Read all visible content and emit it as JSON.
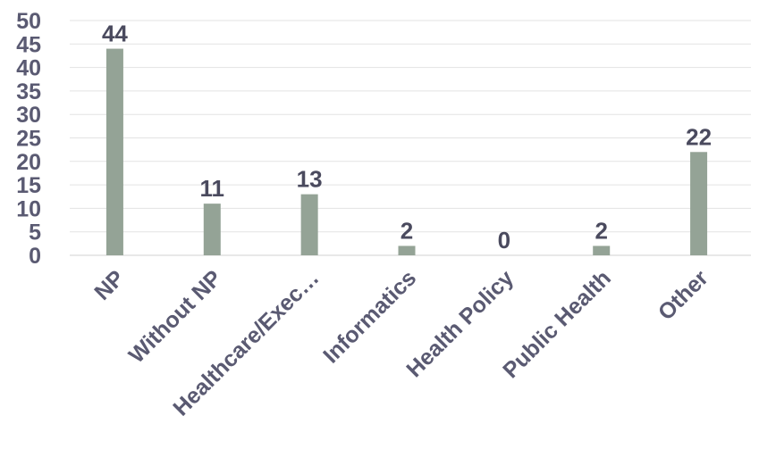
{
  "chart_data": {
    "type": "bar",
    "title": "",
    "xlabel": "",
    "ylabel": "",
    "categories": [
      "NP",
      "Without NP",
      "Healthcare/Exec…",
      "Informatics",
      "Health Policy",
      "Public Health",
      "Other"
    ],
    "values": [
      44,
      11,
      13,
      2,
      0,
      2,
      22
    ],
    "ylim": [
      0,
      50
    ],
    "yticks": [
      0,
      5,
      10,
      15,
      20,
      25,
      30,
      35,
      40,
      45,
      50
    ],
    "grid": true,
    "legend": "none",
    "bar_color": "#94a396",
    "data_labels": true
  }
}
